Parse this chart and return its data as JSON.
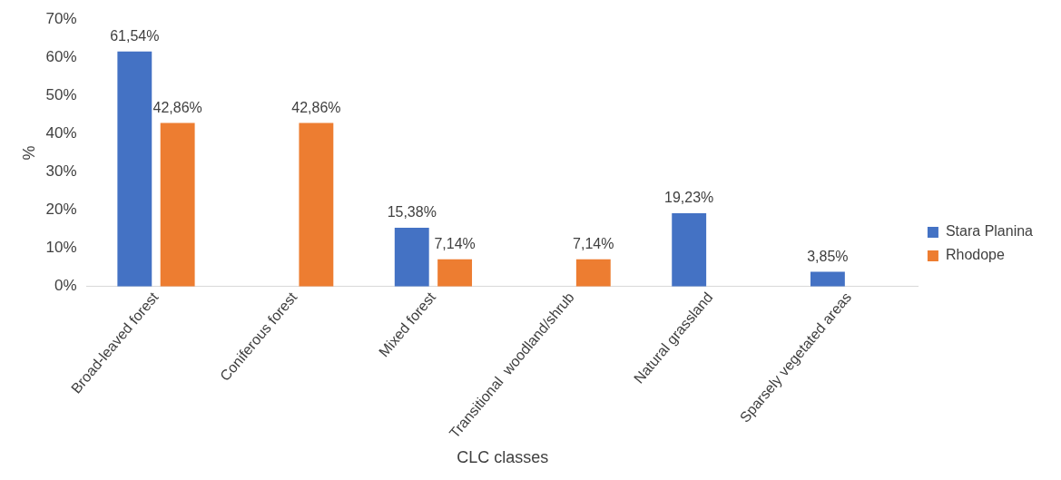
{
  "chart_data": {
    "type": "bar",
    "xlabel": "CLC classes",
    "ylabel": "%",
    "categories": [
      "Broad-leaved forest",
      "Coniferous forest",
      "Mixed forest",
      "Transitional  woodland/shrub",
      "Natural grassland",
      "Sparsely vegetated areas"
    ],
    "series": [
      {
        "name": "Stara Planina",
        "color": "#4472c4",
        "values": [
          61.54,
          null,
          15.38,
          null,
          19.23,
          3.85
        ],
        "value_labels": [
          "61,54%",
          null,
          "15,38%",
          null,
          "19,23%",
          "3,85%"
        ]
      },
      {
        "name": "Rhodope",
        "color": "#ed7d31",
        "values": [
          42.86,
          42.86,
          7.14,
          7.14,
          null,
          null
        ],
        "value_labels": [
          "42,86%",
          "42,86%",
          "7,14%",
          "7,14%",
          null,
          null
        ]
      }
    ],
    "ylim": [
      0,
      70
    ],
    "yticks": [
      {
        "value": 0,
        "label": "0%"
      },
      {
        "value": 10,
        "label": "10%"
      },
      {
        "value": 20,
        "label": "20%"
      },
      {
        "value": 30,
        "label": "30%"
      },
      {
        "value": 40,
        "label": "40%"
      },
      {
        "value": 50,
        "label": "50%"
      },
      {
        "value": 60,
        "label": "60%"
      },
      {
        "value": 70,
        "label": "70%"
      }
    ],
    "legend": "right"
  }
}
